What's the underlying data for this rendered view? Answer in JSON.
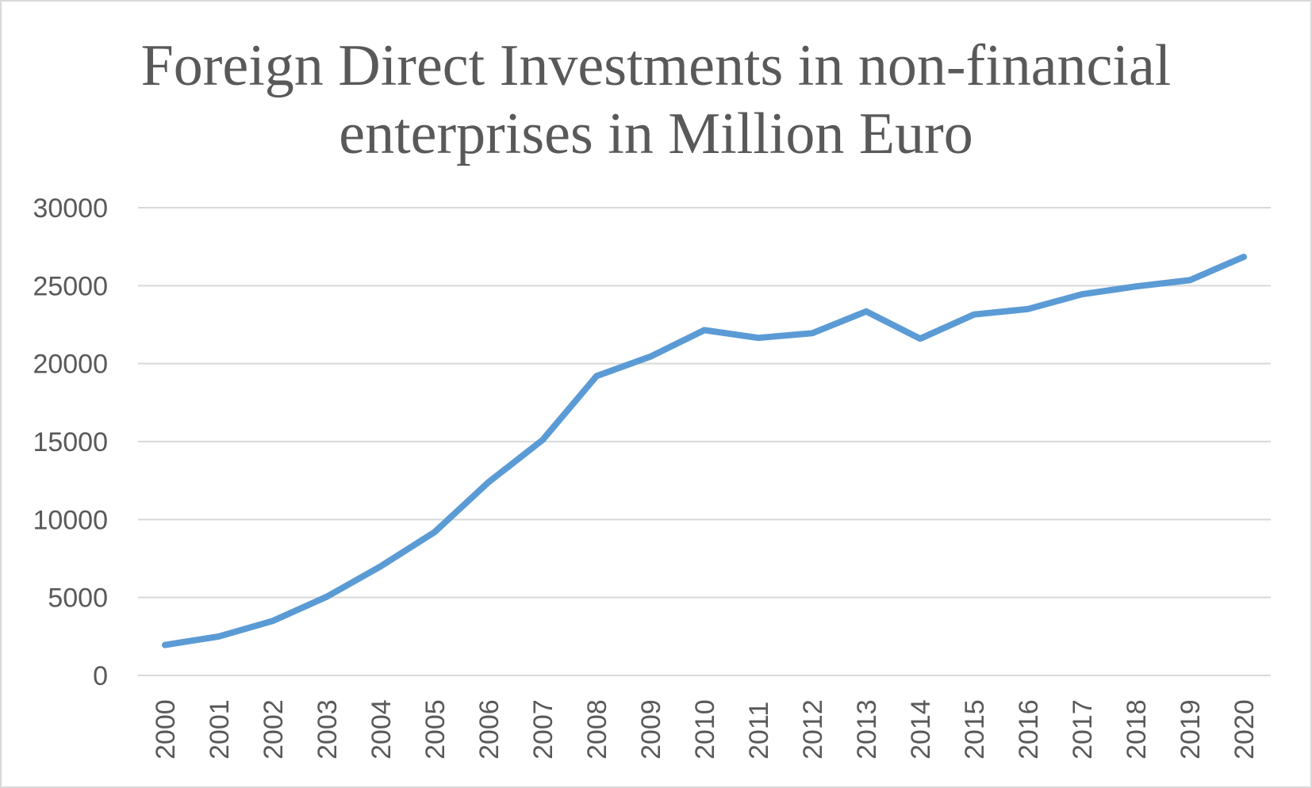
{
  "chart_data": {
    "type": "line",
    "title_lines": [
      "Foreign Direct Investments in non-financial",
      "enterprises in Million Euro"
    ],
    "categories": [
      "2000",
      "2001",
      "2002",
      "2003",
      "2004",
      "2005",
      "2006",
      "2007",
      "2008",
      "2009",
      "2010",
      "2011",
      "2012",
      "2013",
      "2014",
      "2015",
      "2016",
      "2017",
      "2018",
      "2019",
      "2020"
    ],
    "series": [
      {
        "values": [
          1950,
          2500,
          3500,
          5050,
          7000,
          9200,
          12400,
          15100,
          19200,
          20450,
          22150,
          21650,
          21950,
          23350,
          21600,
          23150,
          23500,
          24450,
          24950,
          25350,
          26850
        ],
        "color": "#5b9bd5"
      }
    ],
    "ylim": [
      0,
      30000
    ],
    "yticks": [
      "0",
      "5000",
      "10000",
      "15000",
      "20000",
      "25000",
      "30000"
    ],
    "grid": true,
    "xlabel": "",
    "ylabel": ""
  }
}
